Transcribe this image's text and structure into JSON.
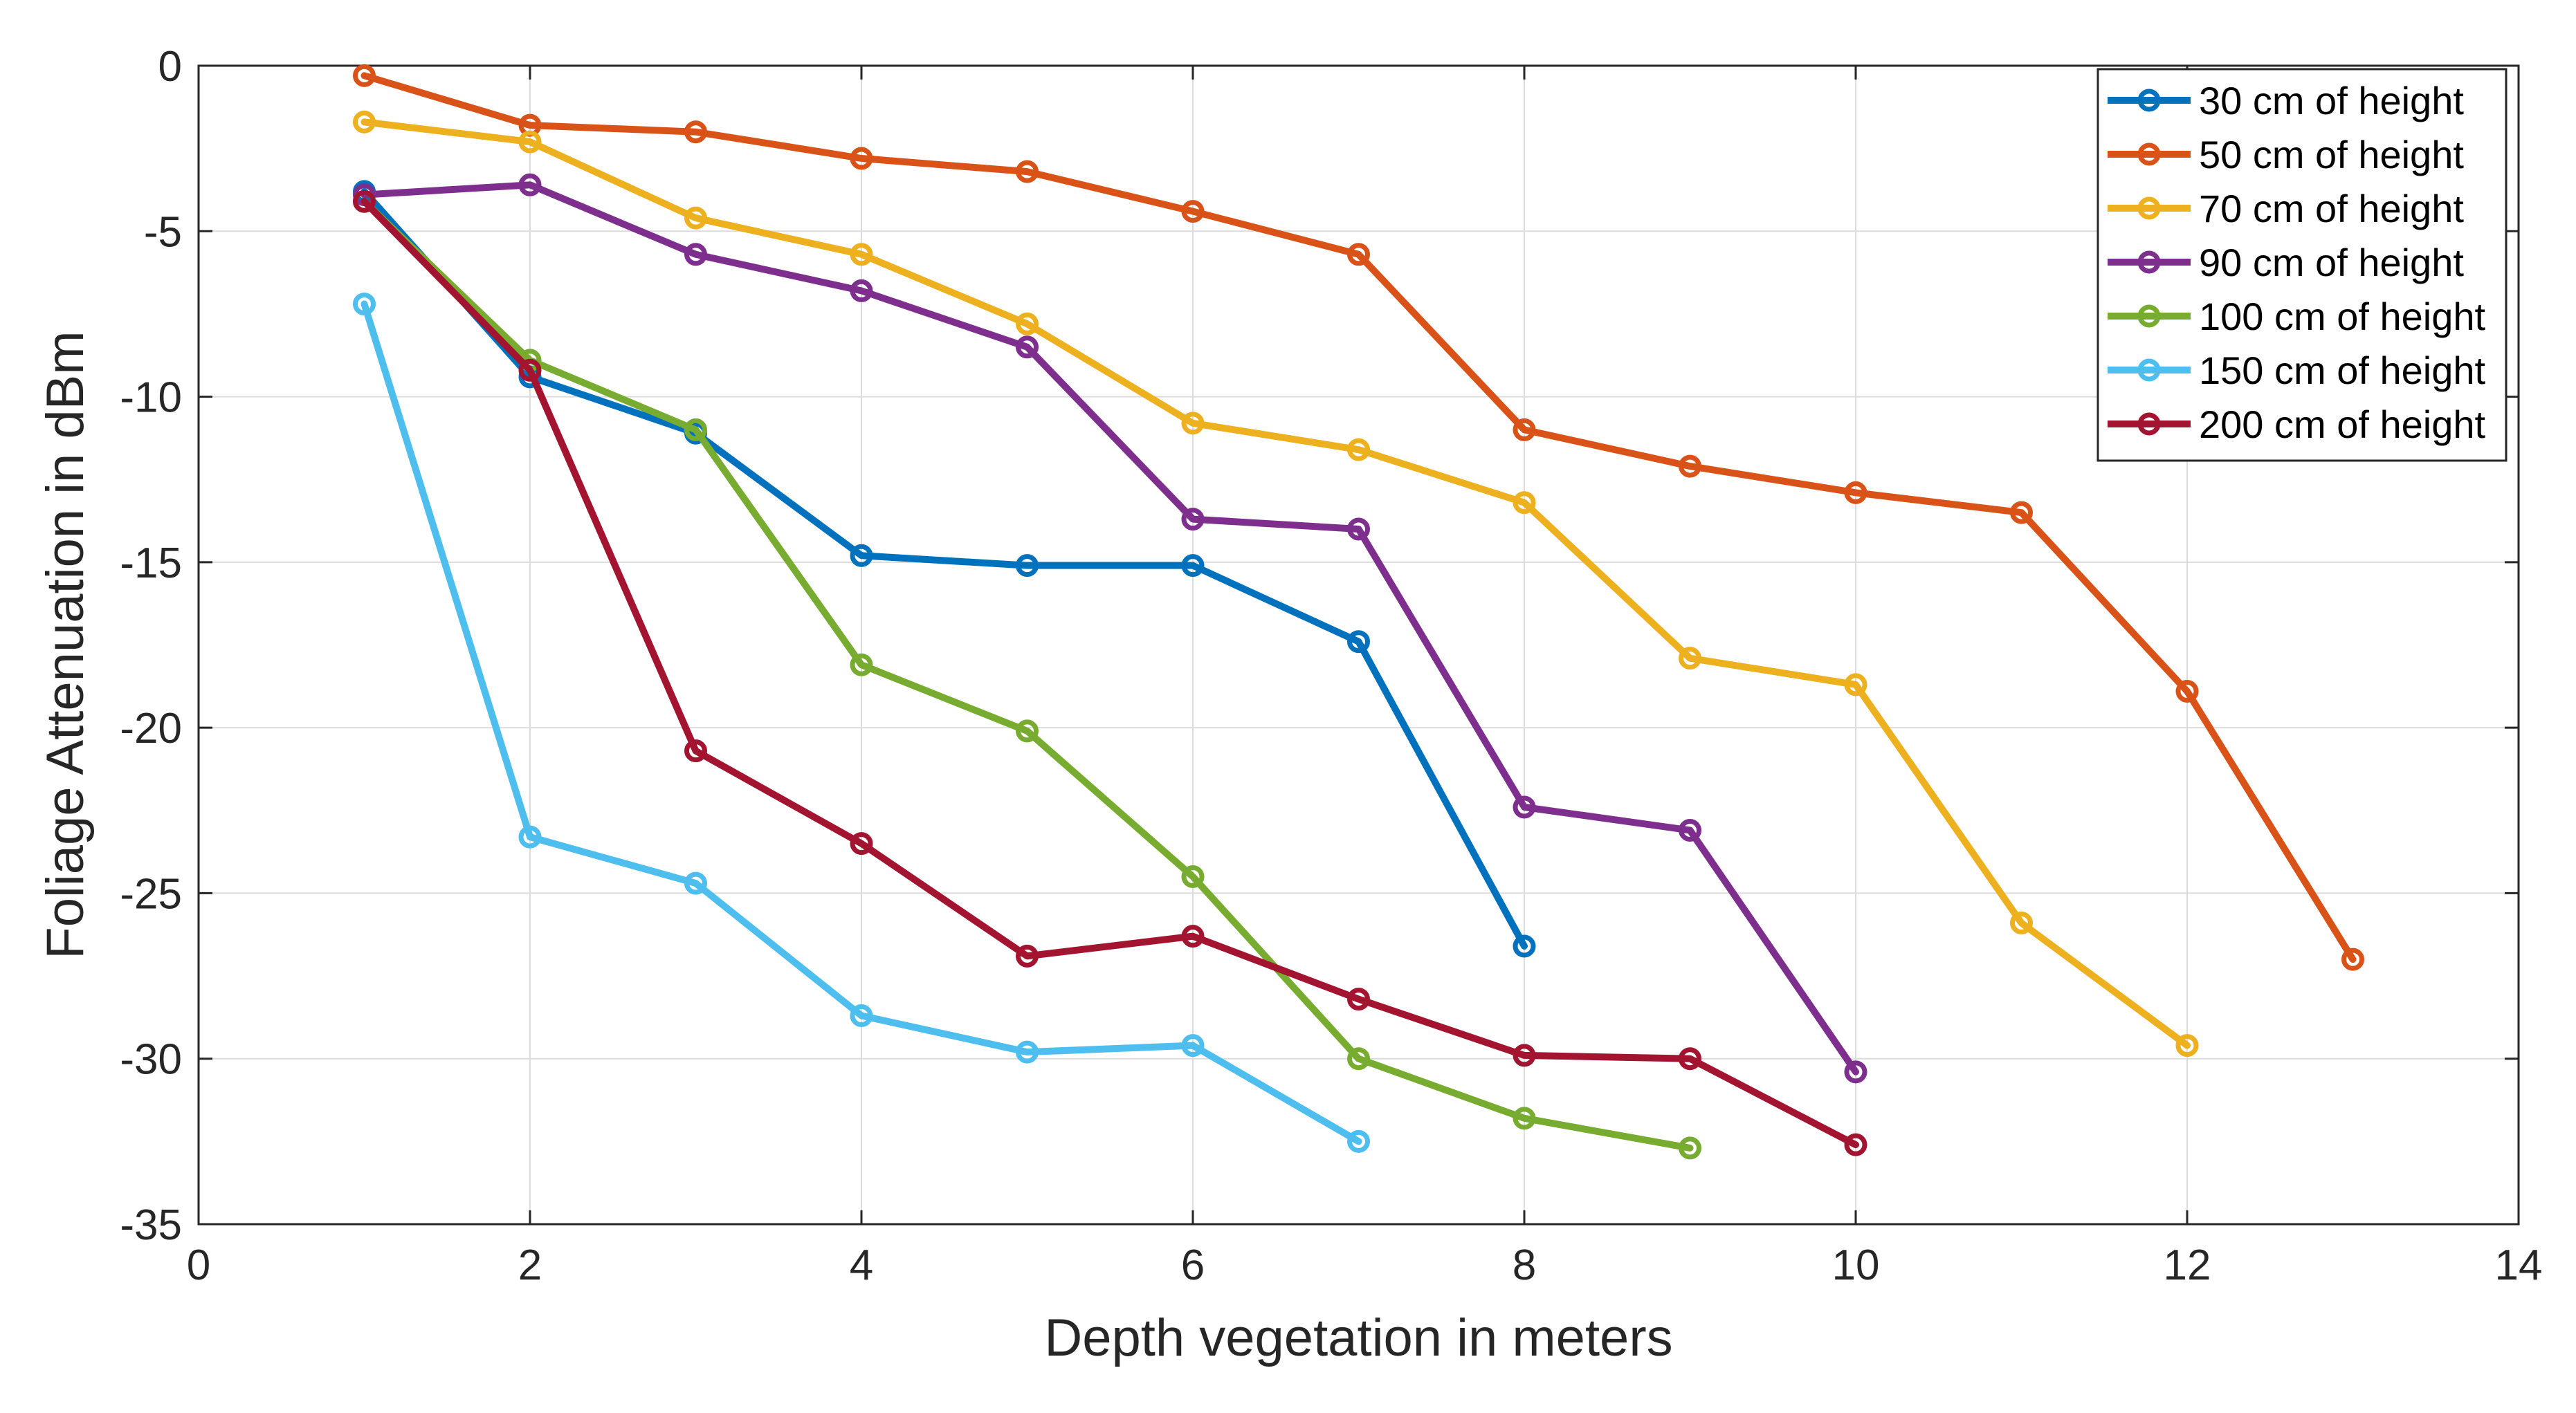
{
  "chart_data": {
    "type": "line",
    "title": "",
    "xlabel": "Depth vegetation in meters",
    "ylabel": "Foliage Attenuation in dBm",
    "xlim": [
      0,
      14
    ],
    "ylim": [
      -35,
      0
    ],
    "xticks": [
      0,
      2,
      4,
      6,
      8,
      10,
      12,
      14
    ],
    "yticks": [
      0,
      -5,
      -10,
      -15,
      -20,
      -25,
      -30,
      -35
    ],
    "xtick_labels": [
      "0",
      "2",
      "4",
      "6",
      "8",
      "10",
      "12",
      "14"
    ],
    "ytick_labels": [
      "0",
      "-5",
      "-10",
      "-15",
      "-20",
      "-25",
      "-30",
      "-35"
    ],
    "grid": true,
    "legend_position": "top-right",
    "series": [
      {
        "name": "30 cm of height",
        "color": "#0072BD",
        "x": [
          1,
          2,
          3,
          4,
          5,
          6,
          7,
          8
        ],
        "y": [
          -3.8,
          -9.4,
          -11.1,
          -14.8,
          -15.1,
          -15.1,
          -17.4,
          -26.6
        ]
      },
      {
        "name": "50 cm of height",
        "color": "#D95319",
        "x": [
          1,
          2,
          3,
          4,
          5,
          6,
          7,
          8,
          9,
          10,
          11,
          12,
          13
        ],
        "y": [
          -0.3,
          -1.8,
          -2.0,
          -2.8,
          -3.2,
          -4.4,
          -5.7,
          -11.0,
          -12.1,
          -12.9,
          -13.5,
          -18.9,
          -27.0
        ]
      },
      {
        "name": "70 cm of height",
        "color": "#EDB120",
        "x": [
          1,
          2,
          3,
          4,
          5,
          6,
          7,
          8,
          9,
          10,
          11,
          12
        ],
        "y": [
          -1.7,
          -2.3,
          -4.6,
          -5.7,
          -7.8,
          -10.8,
          -11.6,
          -13.2,
          -17.9,
          -18.7,
          -25.9,
          -29.6
        ]
      },
      {
        "name": "90 cm of height",
        "color": "#7E2F8E",
        "x": [
          1,
          2,
          3,
          4,
          5,
          6,
          7,
          8,
          9,
          10
        ],
        "y": [
          -3.9,
          -3.6,
          -5.7,
          -6.8,
          -8.5,
          -13.7,
          -14.0,
          -22.4,
          -23.1,
          -30.4
        ]
      },
      {
        "name": "100 cm of height",
        "color": "#77AC30",
        "x": [
          1,
          2,
          3,
          4,
          5,
          6,
          7,
          8,
          9
        ],
        "y": [
          -4.1,
          -8.9,
          -11.0,
          -18.1,
          -20.1,
          -24.5,
          -30.0,
          -31.8,
          -32.7
        ]
      },
      {
        "name": "150 cm of height",
        "color": "#4DBEEE",
        "x": [
          1,
          2,
          3,
          4,
          5,
          6,
          7
        ],
        "y": [
          -7.2,
          -23.3,
          -24.7,
          -28.7,
          -29.8,
          -29.6,
          -32.5
        ]
      },
      {
        "name": "200 cm of height",
        "color": "#A2142F",
        "x": [
          1,
          2,
          3,
          4,
          5,
          6,
          7,
          8,
          9,
          10
        ],
        "y": [
          -4.1,
          -9.2,
          -20.7,
          -23.5,
          -26.9,
          -26.3,
          -28.2,
          -29.9,
          -30.0,
          -32.6
        ]
      }
    ]
  }
}
